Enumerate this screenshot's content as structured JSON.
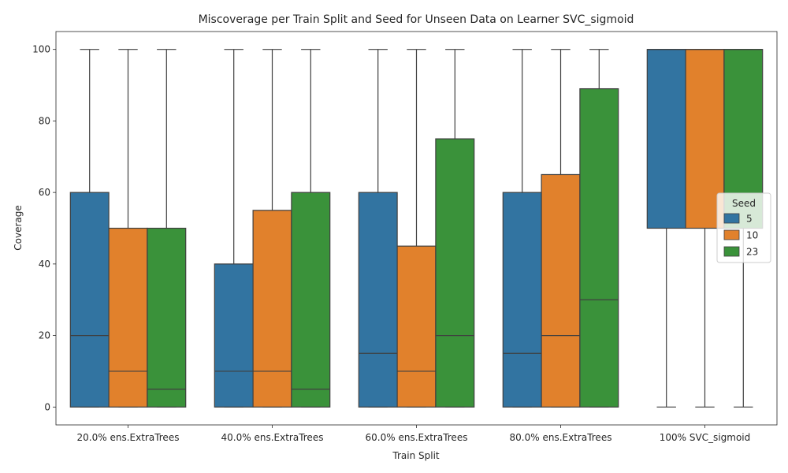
{
  "chart_data": {
    "type": "boxplot",
    "title": "Miscoverage per Train Split and Seed for Unseen Data on Learner SVC_sigmoid",
    "xlabel": "Train Split",
    "ylabel": "Coverage",
    "ylim": [
      -5,
      105
    ],
    "yticks": [
      0,
      20,
      40,
      60,
      80,
      100
    ],
    "grid": false,
    "categories": [
      "20.0% ens.ExtraTrees",
      "40.0% ens.ExtraTrees",
      "60.0% ens.ExtraTrees",
      "80.0% ens.ExtraTrees",
      "100% SVC_sigmoid"
    ],
    "legend": {
      "title": "Seed",
      "placement": "right"
    },
    "series": [
      {
        "name": "5",
        "color": "#3274a1",
        "boxes": [
          {
            "min": 0,
            "q1": 0,
            "median": 20,
            "q3": 60,
            "max": 100
          },
          {
            "min": 0,
            "q1": 0,
            "median": 10,
            "q3": 40,
            "max": 100
          },
          {
            "min": 0,
            "q1": 0,
            "median": 15,
            "q3": 60,
            "max": 100
          },
          {
            "min": 0,
            "q1": 0,
            "median": 15,
            "q3": 60,
            "max": 100
          },
          {
            "min": 0,
            "q1": 50,
            "median": 100,
            "q3": 100,
            "max": 100
          }
        ]
      },
      {
        "name": "10",
        "color": "#e1812c",
        "boxes": [
          {
            "min": 0,
            "q1": 0,
            "median": 10,
            "q3": 50,
            "max": 100
          },
          {
            "min": 0,
            "q1": 0,
            "median": 10,
            "q3": 55,
            "max": 100
          },
          {
            "min": 0,
            "q1": 0,
            "median": 10,
            "q3": 45,
            "max": 100
          },
          {
            "min": 0,
            "q1": 0,
            "median": 20,
            "q3": 65,
            "max": 100
          },
          {
            "min": 0,
            "q1": 50,
            "median": 100,
            "q3": 100,
            "max": 100
          }
        ]
      },
      {
        "name": "23",
        "color": "#3a923a",
        "boxes": [
          {
            "min": 0,
            "q1": 0,
            "median": 5,
            "q3": 50,
            "max": 100
          },
          {
            "min": 0,
            "q1": 0,
            "median": 5,
            "q3": 60,
            "max": 100
          },
          {
            "min": 0,
            "q1": 0,
            "median": 20,
            "q3": 75,
            "max": 100
          },
          {
            "min": 0,
            "q1": 0,
            "median": 30,
            "q3": 89,
            "max": 100
          },
          {
            "min": 0,
            "q1": 50,
            "median": 100,
            "q3": 100,
            "max": 100
          }
        ]
      }
    ]
  }
}
